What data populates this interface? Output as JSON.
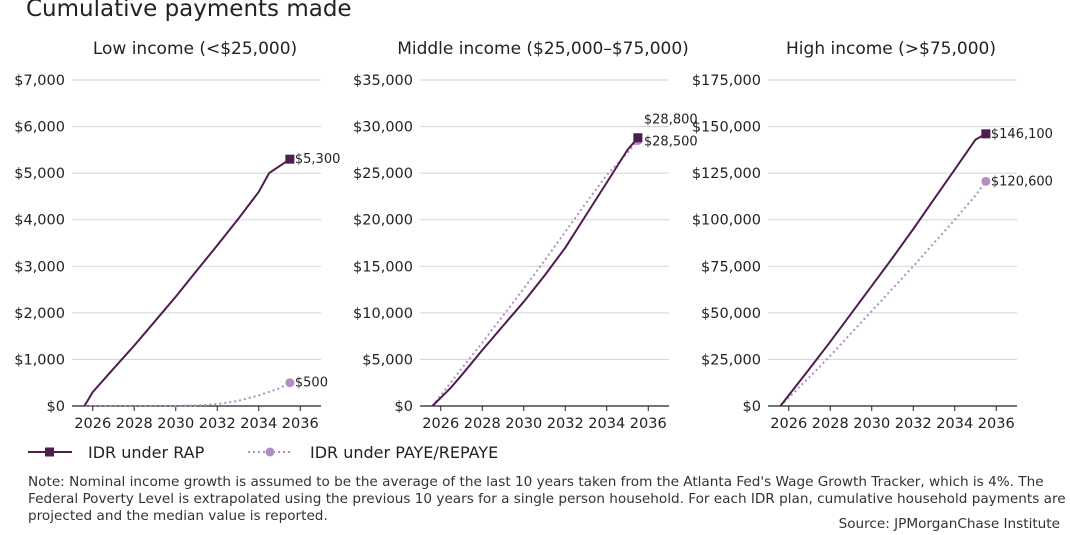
{
  "title": "Cumulative payments made",
  "colors": {
    "rap": "#4e1d50",
    "paye": "#b08ec2",
    "grid": "#d3d3d3",
    "axis": "#222222"
  },
  "legend": {
    "rap": "IDR under RAP",
    "paye": "IDR under PAYE/REPAYE"
  },
  "note": "Note: Nominal income growth is assumed to be the average of the last 10 years taken from the Atlanta Fed's Wage Growth Tracker, which is 4%. The Federal Poverty Level is extrapolated using the previous 10 years for a single person household. For each IDR plan, cumulative household payments are projected and the median value is reported.",
  "source": "Source: JPMorganChase Institute",
  "chart_data": [
    {
      "type": "line",
      "title": "Low income (<$25,000)",
      "xlim": [
        2025,
        2037
      ],
      "xticks": [
        2026,
        2028,
        2030,
        2032,
        2034,
        2036
      ],
      "xtick_labels": [
        "2026",
        "2028",
        "2030",
        "2032",
        "2034",
        "2036"
      ],
      "ylim": [
        0,
        7000
      ],
      "yticks": [
        0,
        1000,
        2000,
        3000,
        4000,
        5000,
        6000,
        7000
      ],
      "ytick_labels": [
        "$0",
        "$1,000",
        "$2,000",
        "$3,000",
        "$4,000",
        "$5,000",
        "$6,000",
        "$7,000"
      ],
      "series": [
        {
          "name": "IDR under RAP",
          "x": [
            2025.6,
            2026,
            2027,
            2028,
            2029,
            2030,
            2031,
            2032,
            2033,
            2034,
            2034.5,
            2035.5
          ],
          "values": [
            0,
            300,
            800,
            1300,
            1820,
            2350,
            2900,
            3450,
            4010,
            4600,
            5000,
            5300
          ],
          "end_label": "$5,300"
        },
        {
          "name": "IDR under PAYE/REPAYE",
          "x": [
            2025.6,
            2027,
            2028,
            2029,
            2030,
            2031,
            2032,
            2033,
            2034,
            2035,
            2035.5
          ],
          "values": [
            0,
            0,
            0,
            0,
            0,
            10,
            40,
            110,
            230,
            380,
            500
          ],
          "end_label": "$500"
        }
      ]
    },
    {
      "type": "line",
      "title": "Middle income ($25,000–$75,000)",
      "xlim": [
        2025,
        2037
      ],
      "xticks": [
        2026,
        2028,
        2030,
        2032,
        2034,
        2036
      ],
      "xtick_labels": [
        "2026",
        "2028",
        "2030",
        "2032",
        "2034",
        "2036"
      ],
      "ylim": [
        0,
        35000
      ],
      "yticks": [
        0,
        5000,
        10000,
        15000,
        20000,
        25000,
        30000,
        35000
      ],
      "ytick_labels": [
        "$0",
        "$5,000",
        "$10,000",
        "$15,000",
        "$20,000",
        "$25,000",
        "$30,000",
        "$35,000"
      ],
      "series": [
        {
          "name": "IDR under RAP",
          "x": [
            2025.6,
            2026.5,
            2027,
            2028,
            2029,
            2030,
            2031,
            2032,
            2033,
            2034,
            2035,
            2035.5
          ],
          "values": [
            0,
            2000,
            3300,
            6000,
            8600,
            11200,
            14000,
            17000,
            20500,
            24000,
            27500,
            28800
          ],
          "end_label": "$28,800"
        },
        {
          "name": "IDR under PAYE/REPAYE",
          "x": [
            2025.6,
            2027,
            2028,
            2029,
            2030,
            2031,
            2032,
            2033,
            2034,
            2035,
            2035.5
          ],
          "values": [
            0,
            4000,
            6800,
            9700,
            12600,
            15600,
            18700,
            21800,
            24800,
            27200,
            28500
          ],
          "end_label": "$28,500"
        }
      ]
    },
    {
      "type": "line",
      "title": "High income (>$75,000)",
      "xlim": [
        2025,
        2037
      ],
      "xticks": [
        2026,
        2028,
        2030,
        2032,
        2034,
        2036
      ],
      "xtick_labels": [
        "2026",
        "2028",
        "2030",
        "2032",
        "2034",
        "2036"
      ],
      "ylim": [
        0,
        175000
      ],
      "yticks": [
        0,
        25000,
        50000,
        75000,
        100000,
        125000,
        150000,
        175000
      ],
      "ytick_labels": [
        "$0",
        "$25,000",
        "$50,000",
        "$75,000",
        "$100,000",
        "$125,000",
        "$150,000",
        "$175,000"
      ],
      "series": [
        {
          "name": "IDR under RAP",
          "x": [
            2025.6,
            2027,
            2028,
            2029,
            2030,
            2031,
            2032,
            2033,
            2034,
            2035,
            2035.5
          ],
          "values": [
            0,
            20000,
            34500,
            49500,
            64500,
            79500,
            95000,
            111000,
            127000,
            143000,
            146100
          ],
          "end_label": "$146,100"
        },
        {
          "name": "IDR under PAYE/REPAYE",
          "x": [
            2025.6,
            2027,
            2028,
            2029,
            2030,
            2031,
            2032,
            2033,
            2034,
            2035,
            2035.5
          ],
          "values": [
            0,
            15500,
            27000,
            39000,
            51000,
            63000,
            75000,
            87500,
            100000,
            113000,
            120600
          ],
          "end_label": "$120,600"
        }
      ]
    }
  ]
}
